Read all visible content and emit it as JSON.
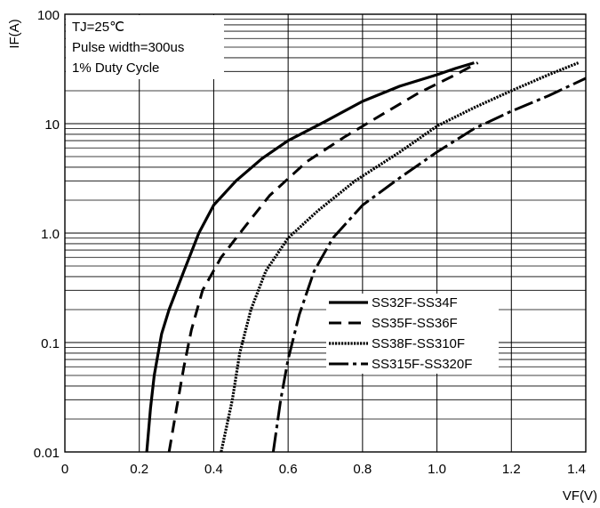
{
  "chart_data": {
    "type": "line",
    "title": "",
    "xlabel": "VF(V)",
    "ylabel": "IF(A)",
    "x_scale": "linear",
    "y_scale": "log",
    "xlim": [
      0,
      1.4
    ],
    "ylim": [
      0.01,
      100
    ],
    "x_ticks": [
      "0",
      "0.2",
      "0.4",
      "0.6",
      "0.8",
      "1.0",
      "1.2",
      "1.4"
    ],
    "y_ticks": [
      "0.01",
      "0.1",
      "1.0",
      "10",
      "100"
    ],
    "grid": true,
    "legend_position": "lower-right",
    "annotations": [
      "TJ=25℃",
      "Pulse width=300us",
      "1% Duty Cycle"
    ],
    "series": [
      {
        "name": "SS32F-SS34F",
        "line_style": "solid",
        "color": "#000000",
        "points": [
          [
            0.22,
            0.01
          ],
          [
            0.23,
            0.025
          ],
          [
            0.24,
            0.05
          ],
          [
            0.26,
            0.12
          ],
          [
            0.28,
            0.2
          ],
          [
            0.32,
            0.45
          ],
          [
            0.36,
            1.0
          ],
          [
            0.4,
            1.8
          ],
          [
            0.46,
            3.0
          ],
          [
            0.53,
            4.8
          ],
          [
            0.6,
            7.0
          ],
          [
            0.7,
            10.5
          ],
          [
            0.8,
            16.0
          ],
          [
            0.9,
            22.0
          ],
          [
            1.0,
            28.0
          ],
          [
            1.05,
            32.0
          ],
          [
            1.1,
            36.0
          ]
        ]
      },
      {
        "name": "SS35F-SS36F",
        "line_style": "dashed",
        "color": "#000000",
        "points": [
          [
            0.28,
            0.01
          ],
          [
            0.3,
            0.025
          ],
          [
            0.32,
            0.06
          ],
          [
            0.34,
            0.13
          ],
          [
            0.37,
            0.3
          ],
          [
            0.42,
            0.6
          ],
          [
            0.48,
            1.1
          ],
          [
            0.55,
            2.2
          ],
          [
            0.65,
            4.5
          ],
          [
            0.75,
            7.5
          ],
          [
            0.85,
            12.0
          ],
          [
            0.95,
            19.0
          ],
          [
            1.05,
            28.0
          ],
          [
            1.11,
            36.0
          ]
        ]
      },
      {
        "name": "SS38F-SS310F",
        "line_style": "dotted",
        "color": "#000000",
        "points": [
          [
            0.42,
            0.01
          ],
          [
            0.45,
            0.03
          ],
          [
            0.47,
            0.08
          ],
          [
            0.5,
            0.2
          ],
          [
            0.54,
            0.45
          ],
          [
            0.6,
            0.9
          ],
          [
            0.68,
            1.6
          ],
          [
            0.78,
            3.0
          ],
          [
            0.9,
            5.5
          ],
          [
            1.0,
            9.5
          ],
          [
            1.1,
            14.0
          ],
          [
            1.2,
            20.0
          ],
          [
            1.3,
            28.0
          ],
          [
            1.38,
            36.0
          ]
        ]
      },
      {
        "name": "SS315F-SS320F",
        "line_style": "long-dash",
        "color": "#000000",
        "points": [
          [
            0.56,
            0.01
          ],
          [
            0.58,
            0.03
          ],
          [
            0.6,
            0.07
          ],
          [
            0.63,
            0.18
          ],
          [
            0.67,
            0.45
          ],
          [
            0.72,
            0.9
          ],
          [
            0.8,
            1.8
          ],
          [
            0.9,
            3.2
          ],
          [
            1.0,
            5.5
          ],
          [
            1.1,
            9.0
          ],
          [
            1.2,
            13.0
          ],
          [
            1.3,
            18.0
          ],
          [
            1.4,
            26.0
          ]
        ]
      }
    ]
  }
}
